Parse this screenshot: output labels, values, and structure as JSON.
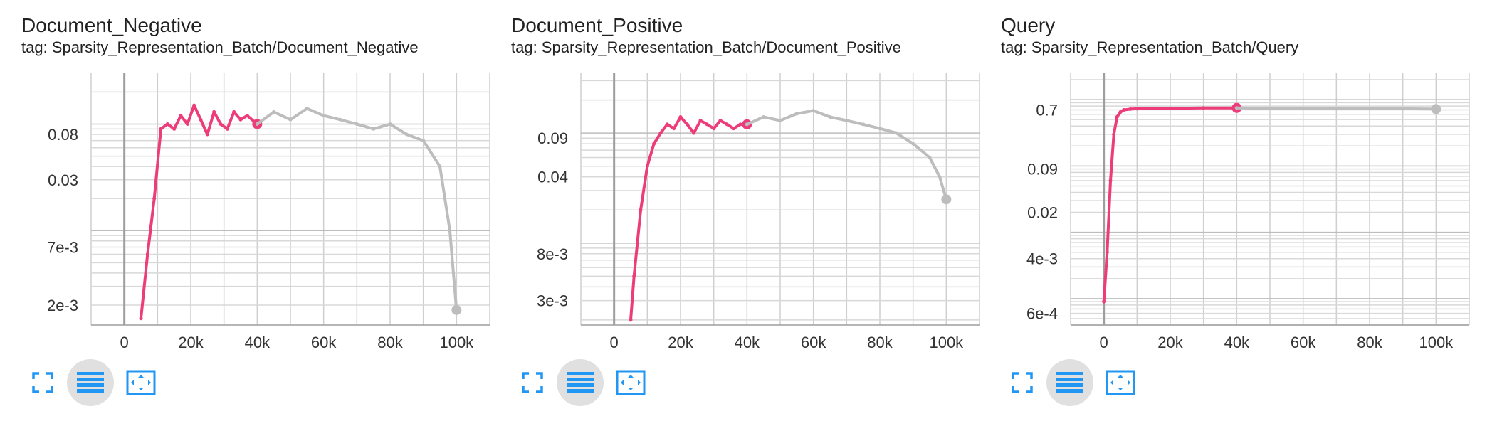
{
  "colors": {
    "accent": "#ec3c79",
    "history": "#bdbdbd",
    "grid": "#cccccc",
    "icon": "#2196f3"
  },
  "charts": [
    {
      "title": "Document_Negative",
      "tag": "tag: Sparsity_Representation_Batch/Document_Negative",
      "controls": [
        "fullscreen-icon",
        "list-icon",
        "fit-domain-icon"
      ],
      "chart_data": {
        "type": "line",
        "title": "Document_Negative",
        "xlabel": "",
        "ylabel": "",
        "yscale": "log",
        "xlim": [
          -10000,
          110000
        ],
        "ylim": [
          0.0013,
          0.3
        ],
        "xticks": [
          "0",
          "20k",
          "40k",
          "60k",
          "80k",
          "100k"
        ],
        "yticks": [
          {
            "value": 0.08,
            "label": "0.08"
          },
          {
            "value": 0.03,
            "label": "0.03"
          },
          {
            "value": 0.007,
            "label": "7e-3"
          },
          {
            "value": 0.002,
            "label": "2e-3"
          }
        ],
        "series": [
          {
            "color": "#ec3c79",
            "x": [
              5000,
              7000,
              9000,
              11000,
              13000,
              15000,
              17000,
              19000,
              21000,
              23000,
              25000,
              27000,
              29000,
              31000,
              33000,
              35000,
              37000,
              40000
            ],
            "y": [
              0.0015,
              0.006,
              0.02,
              0.09,
              0.1,
              0.09,
              0.12,
              0.1,
              0.15,
              0.11,
              0.08,
              0.13,
              0.1,
              0.09,
              0.13,
              0.11,
              0.12,
              0.1
            ]
          },
          {
            "color": "#bdbdbd",
            "x": [
              40000,
              45000,
              50000,
              55000,
              60000,
              65000,
              70000,
              75000,
              80000,
              85000,
              90000,
              95000,
              98000,
              100000
            ],
            "y": [
              0.1,
              0.13,
              0.11,
              0.14,
              0.12,
              0.11,
              0.1,
              0.09,
              0.1,
              0.08,
              0.07,
              0.04,
              0.01,
              0.0018
            ]
          }
        ]
      }
    },
    {
      "title": "Document_Positive",
      "tag": "tag: Sparsity_Representation_Batch/Document_Positive",
      "controls": [
        "fullscreen-icon",
        "list-icon",
        "fit-domain-icon"
      ],
      "chart_data": {
        "type": "line",
        "title": "Document_Positive",
        "xlabel": "",
        "ylabel": "",
        "yscale": "log",
        "xlim": [
          -10000,
          110000
        ],
        "ylim": [
          0.0018,
          0.35
        ],
        "xticks": [
          "0",
          "20k",
          "40k",
          "60k",
          "80k",
          "100k"
        ],
        "yticks": [
          {
            "value": 0.09,
            "label": "0.09"
          },
          {
            "value": 0.04,
            "label": "0.04"
          },
          {
            "value": 0.008,
            "label": "8e-3"
          },
          {
            "value": 0.003,
            "label": "3e-3"
          }
        ],
        "series": [
          {
            "color": "#ec3c79",
            "x": [
              5000,
              6000,
              8000,
              10000,
              12000,
              14000,
              16000,
              18000,
              20000,
              22000,
              24000,
              26000,
              28000,
              30000,
              32000,
              34000,
              36000,
              38000,
              40000
            ],
            "y": [
              0.002,
              0.005,
              0.02,
              0.05,
              0.08,
              0.1,
              0.12,
              0.11,
              0.14,
              0.12,
              0.1,
              0.13,
              0.12,
              0.11,
              0.13,
              0.12,
              0.11,
              0.12,
              0.12
            ]
          },
          {
            "color": "#bdbdbd",
            "x": [
              40000,
              45000,
              50000,
              55000,
              60000,
              65000,
              70000,
              75000,
              80000,
              85000,
              90000,
              95000,
              98000,
              100000
            ],
            "y": [
              0.12,
              0.14,
              0.13,
              0.15,
              0.16,
              0.14,
              0.13,
              0.12,
              0.11,
              0.1,
              0.08,
              0.06,
              0.04,
              0.025
            ]
          }
        ]
      }
    },
    {
      "title": "Query",
      "tag": "tag: Sparsity_Representation_Batch/Query",
      "controls": [
        "fullscreen-icon",
        "list-icon",
        "fit-domain-icon"
      ],
      "chart_data": {
        "type": "line",
        "title": "Query",
        "xlabel": "",
        "ylabel": "",
        "yscale": "log",
        "xlim": [
          -10000,
          110000
        ],
        "ylim": [
          0.0004,
          2.5
        ],
        "xticks": [
          "0",
          "20k",
          "40k",
          "60k",
          "80k",
          "100k"
        ],
        "yticks": [
          {
            "value": 0.7,
            "label": "0.7"
          },
          {
            "value": 0.09,
            "label": "0.09"
          },
          {
            "value": 0.02,
            "label": "0.02"
          },
          {
            "value": 0.004,
            "label": "4e-3"
          },
          {
            "value": 0.0006,
            "label": "6e-4"
          }
        ],
        "series": [
          {
            "color": "#ec3c79",
            "x": [
              0,
              1000,
              2000,
              3000,
              4000,
              5000,
              6000,
              8000,
              10000,
              20000,
              30000,
              40000
            ],
            "y": [
              0.0009,
              0.005,
              0.06,
              0.3,
              0.55,
              0.65,
              0.7,
              0.72,
              0.73,
              0.74,
              0.75,
              0.75
            ]
          },
          {
            "color": "#bdbdbd",
            "x": [
              40000,
              50000,
              60000,
              70000,
              80000,
              90000,
              100000
            ],
            "y": [
              0.75,
              0.74,
              0.74,
              0.73,
              0.73,
              0.73,
              0.72
            ]
          }
        ]
      }
    }
  ]
}
